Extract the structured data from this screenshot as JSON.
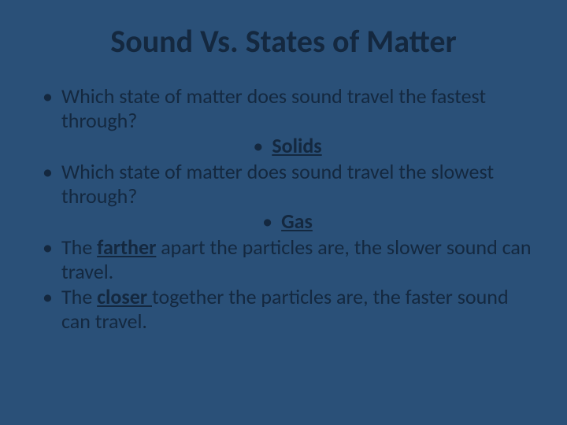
{
  "slide": {
    "background_color": "#2a5078",
    "text_color": "#14283f",
    "title_fontsize": 40,
    "body_fontsize": 26,
    "font_family": "Calibri",
    "title": "Sound Vs. States of Matter",
    "bullets": {
      "q1": "Which state of matter does sound travel the fastest through?",
      "a1": "Solids",
      "q2": "Which state of matter does sound travel the slowest through?",
      "a2": "Gas",
      "p3_pre": "The ",
      "p3_u": "farther",
      "p3_post": " apart the particles are, the slower sound can travel.",
      "p4_pre": "The ",
      "p4_u": "closer ",
      "p4_post": "together the particles are, the faster sound can travel."
    }
  }
}
